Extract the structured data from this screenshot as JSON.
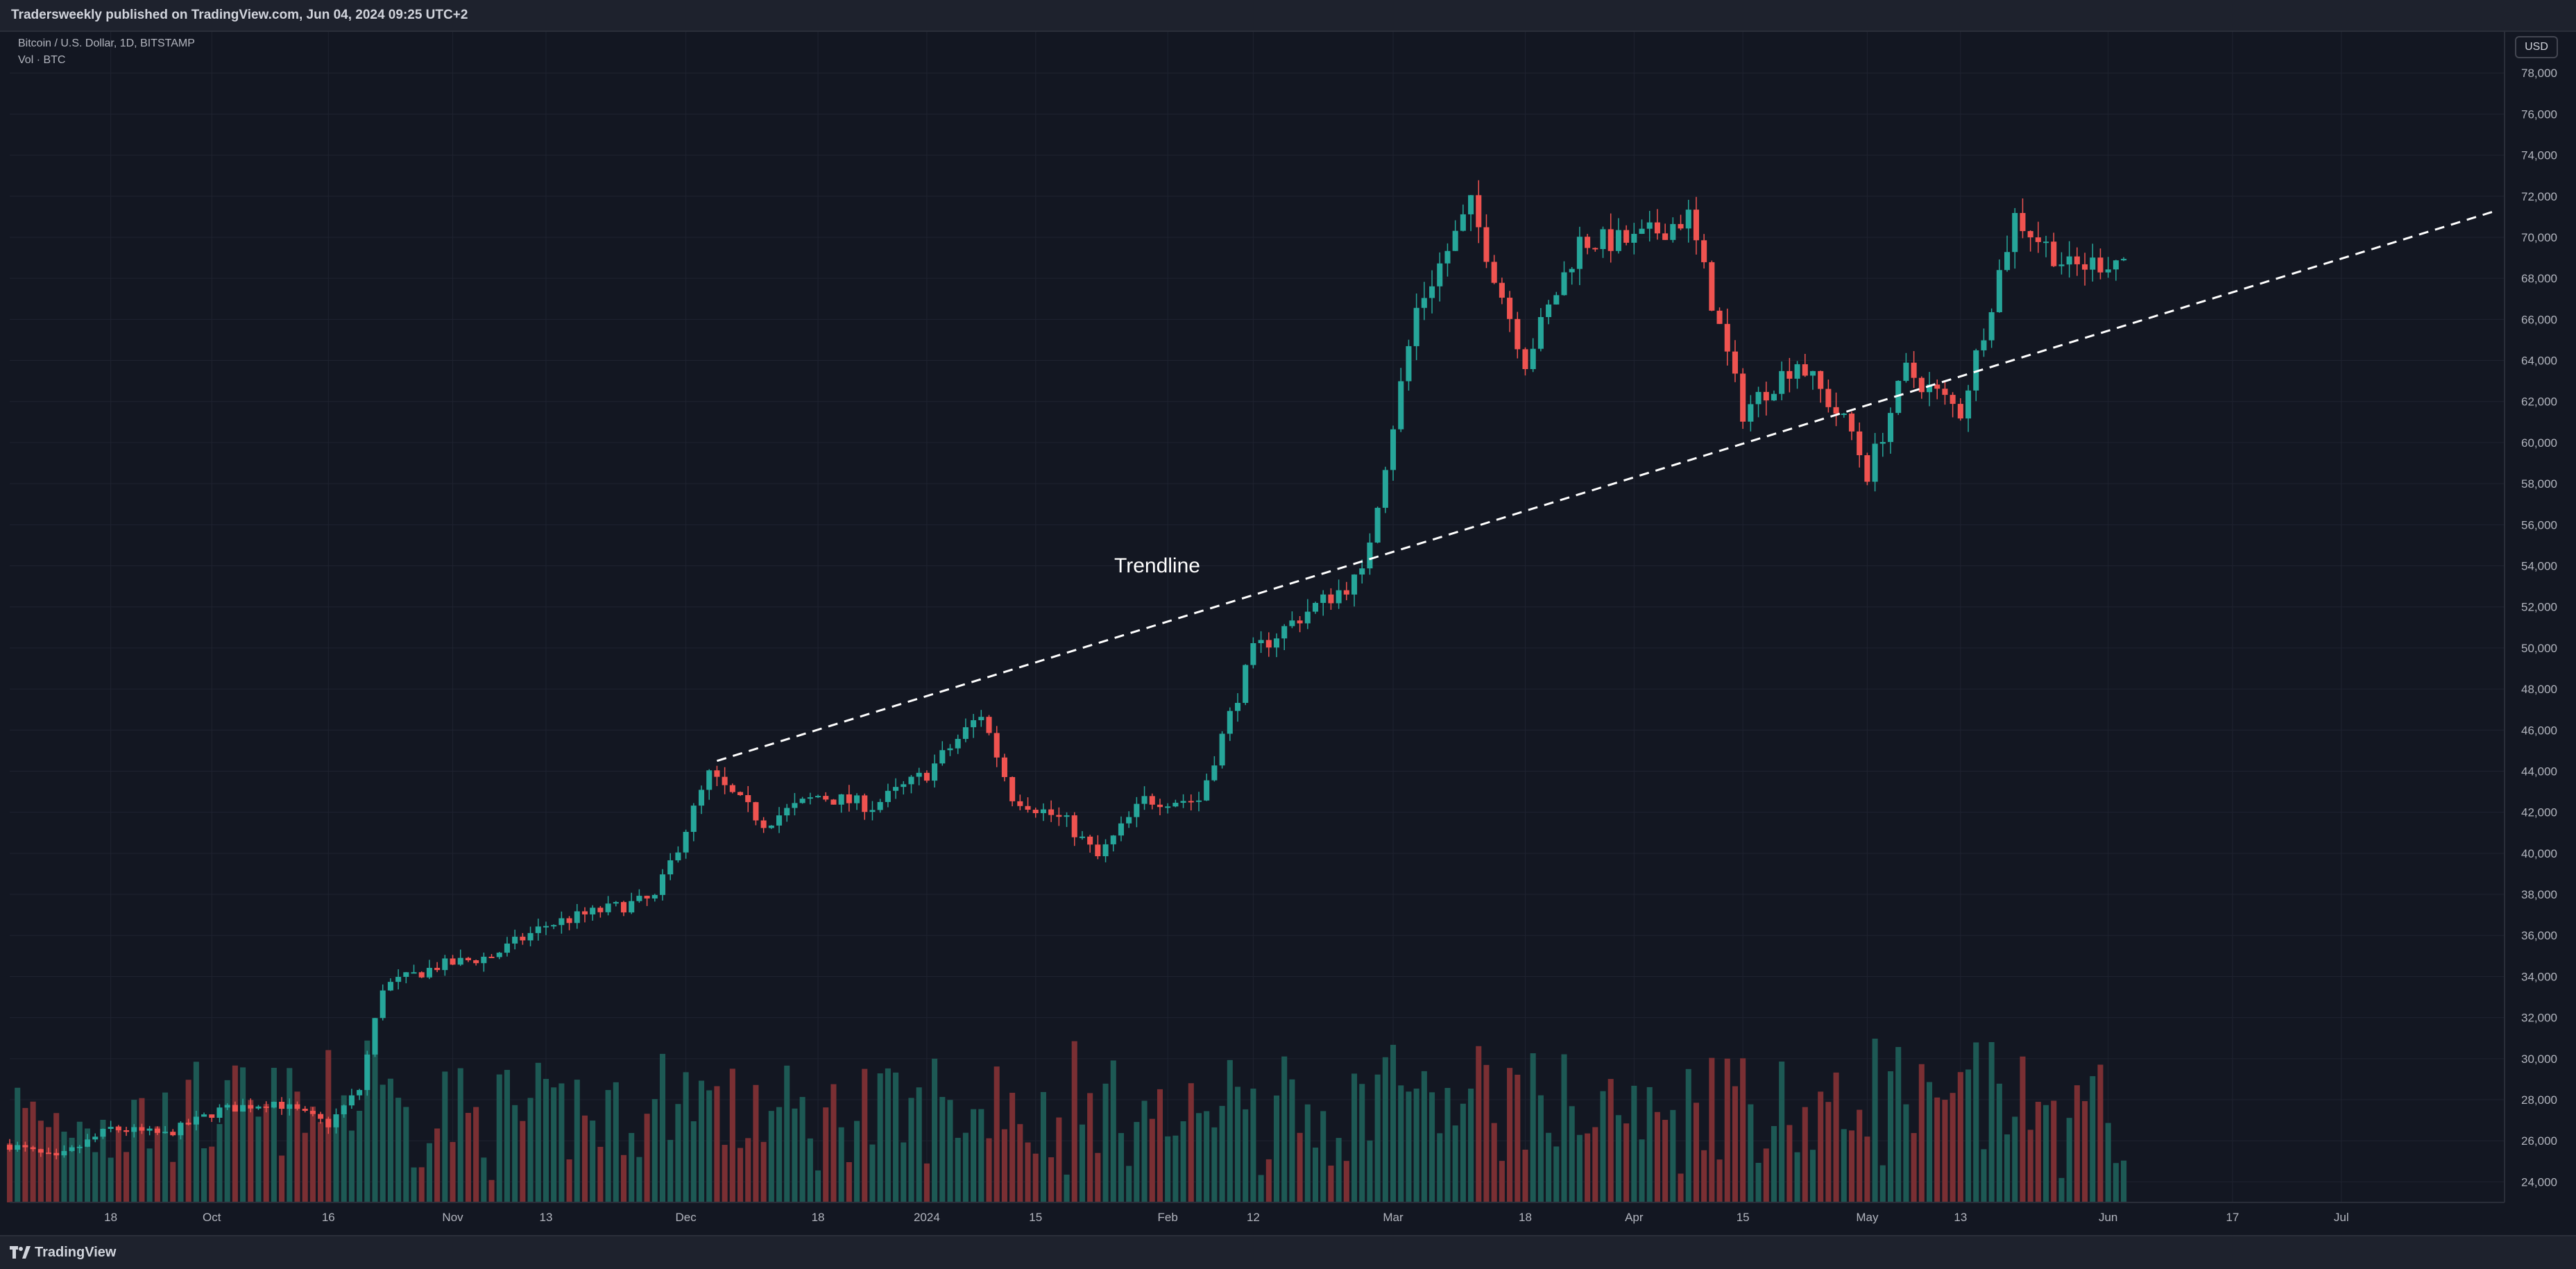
{
  "header": {
    "published_text": "Tradersweekly published on TradingView.com, Jun 04, 2024 09:25 UTC+2"
  },
  "legend": {
    "symbol_line": "Bitcoin / U.S. Dollar, 1D, BITSTAMP",
    "volume_line": "Vol · BTC"
  },
  "price_scale": {
    "currency": "USD"
  },
  "footer": {
    "brand": "TradingView"
  },
  "colors": {
    "up": "#26a69a",
    "down": "#ef5350",
    "up_volume": "#1d5954",
    "down_volume": "#7a2f33",
    "background": "#131722",
    "grid": "#1f2330",
    "text": "#b2b5be",
    "trendline": "#ffffff"
  },
  "chart_data": {
    "type": "candlestick",
    "title": "Bitcoin / U.S. Dollar, 1D, BITSTAMP",
    "ylim": [
      23000,
      80000
    ],
    "y_ticks": [
      24000,
      26000,
      28000,
      30000,
      32000,
      34000,
      36000,
      38000,
      40000,
      42000,
      44000,
      46000,
      48000,
      50000,
      52000,
      54000,
      56000,
      58000,
      60000,
      62000,
      64000,
      66000,
      68000,
      70000,
      72000,
      74000,
      76000,
      78000
    ],
    "x_tick_labels": [
      {
        "date": "2023-09-18",
        "label": "18"
      },
      {
        "date": "2023-10-01",
        "label": "Oct"
      },
      {
        "date": "2023-10-16",
        "label": "16"
      },
      {
        "date": "2023-11-01",
        "label": "Nov"
      },
      {
        "date": "2023-11-13",
        "label": "13"
      },
      {
        "date": "2023-12-01",
        "label": "Dec"
      },
      {
        "date": "2023-12-18",
        "label": "18"
      },
      {
        "date": "2024-01-01",
        "label": "2024"
      },
      {
        "date": "2024-01-15",
        "label": "15"
      },
      {
        "date": "2024-02-01",
        "label": "Feb"
      },
      {
        "date": "2024-02-12",
        "label": "12"
      },
      {
        "date": "2024-03-01",
        "label": "Mar"
      },
      {
        "date": "2024-03-18",
        "label": "18"
      },
      {
        "date": "2024-04-01",
        "label": "Apr"
      },
      {
        "date": "2024-04-15",
        "label": "15"
      },
      {
        "date": "2024-05-01",
        "label": "May"
      },
      {
        "date": "2024-05-13",
        "label": "13"
      },
      {
        "date": "2024-06-01",
        "label": "Jun"
      },
      {
        "date": "2024-06-17",
        "label": "17"
      },
      {
        "date": "2024-07-01",
        "label": "Jul"
      }
    ],
    "x_range": [
      "2023-09-05",
      "2024-07-22"
    ],
    "series": [
      {
        "name": "BTCUSD",
        "closes": [
          {
            "date": "2023-09-05",
            "close": 25800
          },
          {
            "date": "2023-09-11",
            "close": 25100
          },
          {
            "date": "2023-09-18",
            "close": 26600
          },
          {
            "date": "2023-09-25",
            "close": 26300
          },
          {
            "date": "2023-10-02",
            "close": 27500
          },
          {
            "date": "2023-10-09",
            "close": 27900
          },
          {
            "date": "2023-10-16",
            "close": 26800
          },
          {
            "date": "2023-10-20",
            "close": 28500
          },
          {
            "date": "2023-10-23",
            "close": 33500
          },
          {
            "date": "2023-10-30",
            "close": 34500
          },
          {
            "date": "2023-11-06",
            "close": 35000
          },
          {
            "date": "2023-11-13",
            "close": 36500
          },
          {
            "date": "2023-11-20",
            "close": 37200
          },
          {
            "date": "2023-11-27",
            "close": 37800
          },
          {
            "date": "2023-12-04",
            "close": 43800
          },
          {
            "date": "2023-12-11",
            "close": 41500
          },
          {
            "date": "2023-12-18",
            "close": 42800
          },
          {
            "date": "2023-12-25",
            "close": 42300
          },
          {
            "date": "2024-01-01",
            "close": 43900
          },
          {
            "date": "2024-01-08",
            "close": 46800
          },
          {
            "date": "2024-01-12",
            "close": 42800
          },
          {
            "date": "2024-01-19",
            "close": 41500
          },
          {
            "date": "2024-01-23",
            "close": 39800
          },
          {
            "date": "2024-01-29",
            "close": 42600
          },
          {
            "date": "2024-02-05",
            "close": 42600
          },
          {
            "date": "2024-02-12",
            "close": 49800
          },
          {
            "date": "2024-02-19",
            "close": 51800
          },
          {
            "date": "2024-02-26",
            "close": 53500
          },
          {
            "date": "2024-03-04",
            "close": 66500
          },
          {
            "date": "2024-03-11",
            "close": 71500
          },
          {
            "date": "2024-03-18",
            "close": 64000
          },
          {
            "date": "2024-03-25",
            "close": 69800
          },
          {
            "date": "2024-04-01",
            "close": 69800
          },
          {
            "date": "2024-04-08",
            "close": 71000
          },
          {
            "date": "2024-04-15",
            "close": 61500
          },
          {
            "date": "2024-04-22",
            "close": 64000
          },
          {
            "date": "2024-04-29",
            "close": 60500
          },
          {
            "date": "2024-05-01",
            "close": 58500
          },
          {
            "date": "2024-05-06",
            "close": 63500
          },
          {
            "date": "2024-05-13",
            "close": 61500
          },
          {
            "date": "2024-05-20",
            "close": 71000
          },
          {
            "date": "2024-05-27",
            "close": 68500
          },
          {
            "date": "2024-06-03",
            "close": 69000
          }
        ]
      },
      {
        "name": "Vol · BTC",
        "note_scale": "relative"
      }
    ],
    "annotations": [
      {
        "type": "trendline",
        "label": "Trendline",
        "from": {
          "date": "2023-12-05",
          "price": 44500
        },
        "to": {
          "date": "2024-07-21",
          "price": 71300
        },
        "style": "dashed"
      }
    ]
  }
}
